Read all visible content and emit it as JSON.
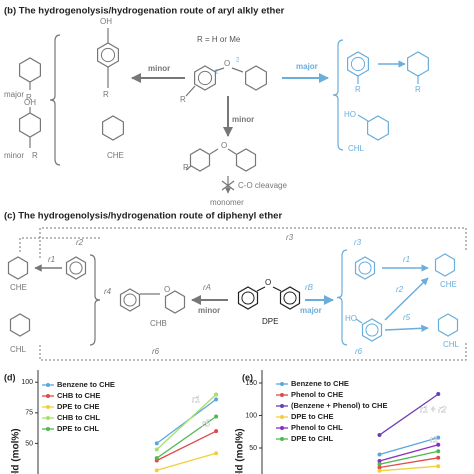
{
  "panel_b": {
    "title": "(b) The hydrogenolysis/hydrogenation route of aryl alkly ether",
    "r_def": "R = H or Me",
    "major_left": "major",
    "minor_left": "minor",
    "major_right": "major",
    "minor_down": "minor",
    "minor_bottom_left": "minor",
    "che": "CHE",
    "chl": "CHL",
    "oh": "OH",
    "ho": "HO",
    "o": "O",
    "r": "R",
    "pos1": "1",
    "pos2": "2",
    "cleavage": "C-O cleavage",
    "monomer": "monomer"
  },
  "panel_c": {
    "title": "(c) The hydrogenolysis/hydrogenation route of diphenyl ether",
    "che": "CHE",
    "chb": "CHB",
    "chl": "CHL",
    "dpe": "DPE",
    "minor": "minor",
    "major": "major",
    "ho": "HO",
    "o": "O",
    "r1": "r1",
    "r2": "r2",
    "r3": "r3",
    "r4": "r4",
    "r5": "r5",
    "r6": "r6",
    "rA": "rA",
    "rB": "rB"
  },
  "chart_data": [
    {
      "type": "line",
      "panel_label": "(d)",
      "y_label": "Yield (mol%)",
      "xlim": [
        0,
        3.2
      ],
      "ylim": [
        25,
        110
      ],
      "yticks": [
        50,
        75,
        100
      ],
      "annotations": [
        "r1",
        "r5"
      ],
      "series": [
        {
          "name": "Benzene to CHE",
          "color": "#5aa7e0",
          "x": [
            2,
            3
          ],
          "values": [
            50,
            86
          ]
        },
        {
          "name": "CHB to CHE",
          "color": "#e04a4a",
          "x": [
            2,
            3
          ],
          "values": [
            36,
            60
          ]
        },
        {
          "name": "DPE to CHE",
          "color": "#f2cf3a",
          "x": [
            2,
            3
          ],
          "values": [
            28,
            42
          ]
        },
        {
          "name": "CHB to CHL",
          "color": "#a6e06a",
          "x": [
            2,
            3
          ],
          "values": [
            45,
            90
          ]
        },
        {
          "name": "DPE to CHL",
          "color": "#4fb84f",
          "x": [
            2,
            3
          ],
          "values": [
            38,
            72
          ]
        }
      ]
    },
    {
      "type": "line",
      "panel_label": "(e)",
      "y_label": "Yield (mol%)",
      "xlim": [
        0,
        3.2
      ],
      "ylim": [
        10,
        170
      ],
      "yticks": [
        50,
        100,
        150
      ],
      "annotations": [
        "r1 + r2",
        "r1"
      ],
      "series": [
        {
          "name": "Benzene to CHE",
          "color": "#5aa7e0",
          "x": [
            2,
            3
          ],
          "values": [
            40,
            66
          ]
        },
        {
          "name": "Phenol to CHE",
          "color": "#e04a4a",
          "x": [
            2,
            3
          ],
          "values": [
            20,
            35
          ]
        },
        {
          "name": "(Benzene + Phenol) to CHE",
          "color": "#6a3fb5",
          "x": [
            2,
            3
          ],
          "values": [
            70,
            133
          ]
        },
        {
          "name": "DPE to CHE",
          "color": "#f2cf3a",
          "x": [
            2,
            3
          ],
          "values": [
            15,
            22
          ]
        },
        {
          "name": "Phenol to CHL",
          "color": "#8a2fc0",
          "x": [
            2,
            3
          ],
          "values": [
            30,
            55
          ]
        },
        {
          "name": "DPE to CHL",
          "color": "#4fb84f",
          "x": [
            2,
            3
          ],
          "values": [
            25,
            45
          ]
        }
      ]
    }
  ]
}
